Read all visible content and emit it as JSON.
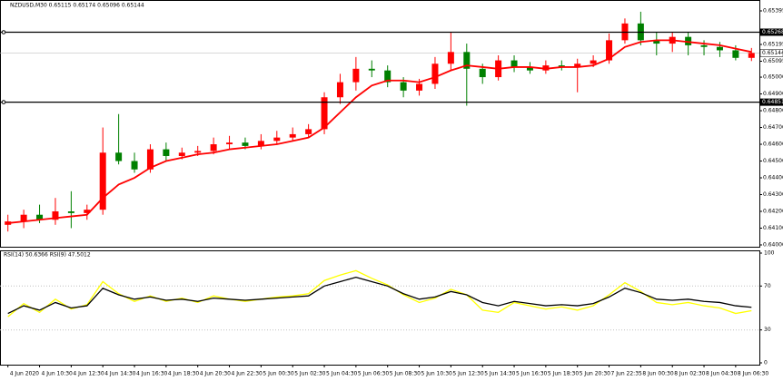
{
  "chart_data": [
    {
      "type": "candlestick",
      "title": "NZDUSD,M30 0.65115 0.65174 0.65096 0.65144",
      "categories": [
        "4 Jun 2020",
        null,
        "4 Jun 10:30",
        null,
        "4 Jun 12:30",
        null,
        "4 Jun 14:30",
        null,
        "4 Jun 16:30",
        null,
        "4 Jun 18:30",
        null,
        "4 Jun 20:30",
        null,
        "4 Jun 22:30",
        null,
        "5 Jun 00:30",
        null,
        "5 Jun 02:30",
        null,
        "5 Jun 04:30",
        null,
        "5 Jun 06:30",
        null,
        "5 Jun 08:30",
        null,
        "5 Jun 10:30",
        null,
        "5 Jun 12:30",
        null,
        "5 Jun 14:30",
        null,
        "5 Jun 16:30",
        null,
        "5 Jun 18:30",
        null,
        "5 Jun 20:30",
        null,
        "7 Jun 22:35",
        null,
        "8 Jun 00:30",
        null,
        "8 Jun 02:30",
        null,
        "8 Jun 04:30",
        null,
        "8 Jun 06:30",
        null
      ],
      "open": [
        0.6412,
        0.6414,
        0.6418,
        0.6415,
        0.642,
        0.6419,
        0.6421,
        0.6455,
        0.645,
        0.6445,
        0.6457,
        0.6453,
        0.6455,
        0.6456,
        0.646,
        0.6461,
        0.6459,
        0.6462,
        0.6464,
        0.6466,
        0.6469,
        0.6488,
        0.6497,
        0.6505,
        0.6504,
        0.6497,
        0.6492,
        0.6496,
        0.6508,
        0.6515,
        0.6505,
        0.65,
        0.651,
        0.6506,
        0.6504,
        0.6507,
        0.6506,
        0.6508,
        0.651,
        0.6522,
        0.6532,
        0.6522,
        0.652,
        0.6524,
        0.6519,
        0.6518,
        0.6516,
        0.65115
      ],
      "high": [
        0.6418,
        0.6421,
        0.6424,
        0.6428,
        0.6432,
        0.6424,
        0.647,
        0.6478,
        0.6455,
        0.646,
        0.6461,
        0.6458,
        0.6459,
        0.6464,
        0.6465,
        0.6464,
        0.6466,
        0.6468,
        0.647,
        0.6472,
        0.6491,
        0.6502,
        0.6512,
        0.651,
        0.6507,
        0.65,
        0.6499,
        0.6512,
        0.6527,
        0.652,
        0.6508,
        0.6513,
        0.6513,
        0.6509,
        0.651,
        0.651,
        0.6511,
        0.6513,
        0.6526,
        0.6535,
        0.6539,
        0.6527,
        0.6527,
        0.6527,
        0.6522,
        0.6521,
        0.6519,
        0.65174
      ],
      "low": [
        0.6408,
        0.641,
        0.6413,
        0.6412,
        0.641,
        0.6415,
        0.6418,
        0.6448,
        0.6443,
        0.6443,
        0.645,
        0.6451,
        0.6453,
        0.6454,
        0.6457,
        0.6457,
        0.6457,
        0.646,
        0.6462,
        0.6464,
        0.6466,
        0.6484,
        0.6492,
        0.65,
        0.6494,
        0.6488,
        0.6489,
        0.6493,
        0.6504,
        0.6483,
        0.6496,
        0.6498,
        0.6503,
        0.6502,
        0.6502,
        0.6504,
        0.6491,
        0.6506,
        0.6508,
        0.652,
        0.6519,
        0.6513,
        0.6515,
        0.6513,
        0.6513,
        0.6512,
        0.651,
        0.65096
      ],
      "close": [
        0.6414,
        0.6418,
        0.6415,
        0.642,
        0.6419,
        0.6421,
        0.6455,
        0.645,
        0.6445,
        0.6457,
        0.6453,
        0.6455,
        0.6456,
        0.646,
        0.6461,
        0.6459,
        0.6462,
        0.6464,
        0.6466,
        0.6469,
        0.6488,
        0.6497,
        0.6505,
        0.6504,
        0.6497,
        0.6492,
        0.6496,
        0.6508,
        0.6515,
        0.6505,
        0.65,
        0.651,
        0.6506,
        0.6504,
        0.6507,
        0.6506,
        0.6508,
        0.651,
        0.6522,
        0.6532,
        0.6522,
        0.652,
        0.6524,
        0.6519,
        0.6518,
        0.6516,
        0.65115,
        0.65144
      ],
      "up_color": "#ff0000",
      "down_color": "#008000",
      "series": [
        {
          "color": "#ff0000",
          "values": [
            0.6413,
            0.6414,
            0.6415,
            0.6416,
            0.6417,
            0.6418,
            0.6428,
            0.6436,
            0.644,
            0.6446,
            0.645,
            0.6452,
            0.6454,
            0.6455,
            0.6457,
            0.6458,
            0.6459,
            0.646,
            0.6462,
            0.6464,
            0.647,
            0.6479,
            0.6488,
            0.6495,
            0.6498,
            0.6498,
            0.6497,
            0.65,
            0.6504,
            0.6507,
            0.6506,
            0.6505,
            0.6506,
            0.6506,
            0.6505,
            0.6506,
            0.6506,
            0.6507,
            0.6511,
            0.6518,
            0.6521,
            0.6522,
            0.6522,
            0.6521,
            0.652,
            0.6519,
            0.6517,
            0.6515
          ]
        }
      ],
      "ylim": [
        0.64,
        0.65395
      ],
      "yticks": [
        {
          "value": 0.65395,
          "label": "0.65395"
        },
        {
          "value": 0.65195,
          "label": "0.65195"
        },
        {
          "value": 0.65095,
          "label": "0.65095"
        },
        {
          "value": 0.65,
          "label": "0.65000"
        },
        {
          "value": 0.649,
          "label": "0.64900"
        },
        {
          "value": 0.648,
          "label": "0.64800"
        },
        {
          "value": 0.647,
          "label": "0.64700"
        },
        {
          "value": 0.646,
          "label": "0.64600"
        },
        {
          "value": 0.645,
          "label": "0.64500"
        },
        {
          "value": 0.644,
          "label": "0.64400"
        },
        {
          "value": 0.643,
          "label": "0.64300"
        },
        {
          "value": 0.642,
          "label": "0.64200"
        },
        {
          "value": 0.641,
          "label": "0.64100"
        },
        {
          "value": 0.64,
          "label": "0.64000"
        }
      ],
      "hlines": [
        0.65268,
        0.64851
      ],
      "current_price": 0.65144
    },
    {
      "type": "line",
      "title": "RSI(14) 50.6366 RSI(9) 47.5012",
      "series": [
        {
          "color": "#000000",
          "values": [
            45,
            52,
            48,
            55,
            50,
            52,
            68,
            62,
            58,
            60,
            57,
            58,
            56,
            59,
            58,
            57,
            58,
            59,
            60,
            61,
            70,
            74,
            78,
            74,
            70,
            63,
            58,
            60,
            65,
            62,
            55,
            52,
            56,
            54,
            52,
            53,
            52,
            54,
            60,
            68,
            64,
            58,
            57,
            58,
            56,
            55,
            52,
            50.6366
          ]
        },
        {
          "color": "#ffff00",
          "values": [
            42,
            54,
            46,
            58,
            49,
            53,
            74,
            63,
            56,
            61,
            56,
            59,
            55,
            61,
            58,
            56,
            58,
            60,
            61,
            63,
            75,
            80,
            84,
            77,
            71,
            62,
            55,
            59,
            67,
            62,
            48,
            46,
            55,
            52,
            49,
            51,
            48,
            52,
            62,
            73,
            65,
            55,
            53,
            55,
            52,
            50,
            45,
            47.5012
          ]
        }
      ],
      "ylim": [
        0,
        100
      ],
      "yticks": [
        100,
        70,
        30,
        0
      ],
      "levels": [
        70,
        30
      ]
    }
  ]
}
